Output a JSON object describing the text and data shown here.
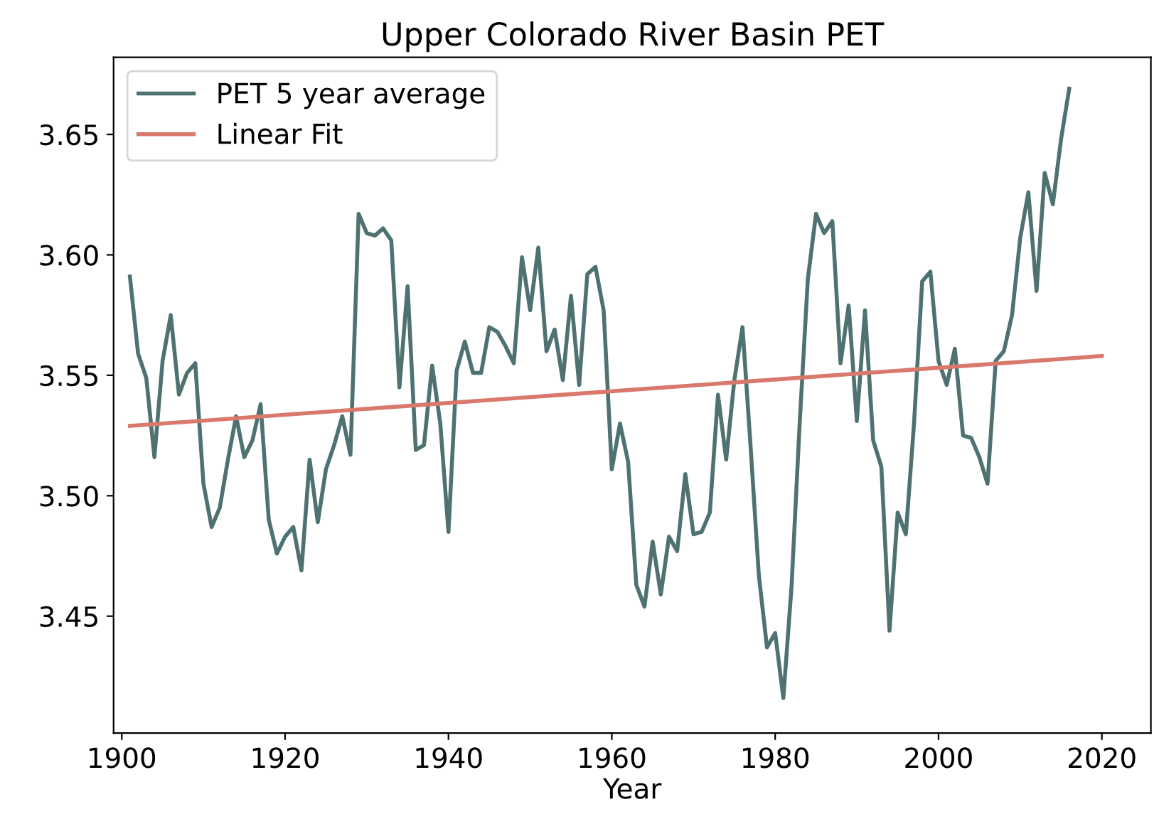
{
  "chart_data": {
    "type": "line",
    "title": "Upper Colorado River Basin PET",
    "xlabel": "Year",
    "xlim": [
      1899,
      2026
    ],
    "ylim": [
      3.4015,
      3.682
    ],
    "xticks": [
      1900,
      1920,
      1940,
      1960,
      1980,
      2000,
      2020
    ],
    "yticks": [
      {
        "value": 3.45,
        "label": "3.45"
      },
      {
        "value": 3.5,
        "label": "3.50"
      },
      {
        "value": 3.55,
        "label": "3.55"
      },
      {
        "value": 3.6,
        "label": "3.60"
      },
      {
        "value": 3.65,
        "label": "3.65"
      }
    ],
    "legend": "top left",
    "grid": false,
    "series": [
      {
        "name": "PET 5 year average",
        "color": "#4e7272",
        "x": [
          1901,
          1902,
          1903,
          1904,
          1905,
          1906,
          1907,
          1908,
          1909,
          1910,
          1911,
          1912,
          1913,
          1914,
          1915,
          1916,
          1917,
          1918,
          1919,
          1920,
          1921,
          1922,
          1923,
          1924,
          1925,
          1926,
          1927,
          1928,
          1929,
          1930,
          1931,
          1932,
          1933,
          1934,
          1935,
          1936,
          1937,
          1938,
          1939,
          1940,
          1941,
          1942,
          1943,
          1944,
          1945,
          1946,
          1947,
          1948,
          1949,
          1950,
          1951,
          1952,
          1953,
          1954,
          1955,
          1956,
          1957,
          1958,
          1959,
          1960,
          1961,
          1962,
          1963,
          1964,
          1965,
          1966,
          1967,
          1968,
          1969,
          1970,
          1971,
          1972,
          1973,
          1974,
          1975,
          1976,
          1977,
          1978,
          1979,
          1980,
          1981,
          1982,
          1983,
          1984,
          1985,
          1986,
          1987,
          1988,
          1989,
          1990,
          1991,
          1992,
          1993,
          1994,
          1995,
          1996,
          1997,
          1998,
          1999,
          2000,
          2001,
          2002,
          2003,
          2004,
          2005,
          2006,
          2007,
          2008,
          2009,
          2010,
          2011,
          2012,
          2013,
          2014,
          2015,
          2016
        ],
        "values": [
          3.591,
          3.559,
          3.549,
          3.516,
          3.556,
          3.575,
          3.542,
          3.551,
          3.555,
          3.505,
          3.487,
          3.495,
          3.515,
          3.533,
          3.516,
          3.523,
          3.538,
          3.49,
          3.476,
          3.483,
          3.487,
          3.469,
          3.515,
          3.489,
          3.511,
          3.521,
          3.533,
          3.517,
          3.617,
          3.609,
          3.608,
          3.611,
          3.606,
          3.545,
          3.587,
          3.519,
          3.521,
          3.554,
          3.53,
          3.485,
          3.552,
          3.564,
          3.551,
          3.551,
          3.57,
          3.568,
          3.562,
          3.555,
          3.599,
          3.577,
          3.603,
          3.56,
          3.569,
          3.548,
          3.583,
          3.546,
          3.592,
          3.595,
          3.577,
          3.511,
          3.53,
          3.514,
          3.463,
          3.454,
          3.481,
          3.459,
          3.483,
          3.477,
          3.509,
          3.484,
          3.485,
          3.493,
          3.542,
          3.515,
          3.548,
          3.57,
          3.52,
          3.467,
          3.437,
          3.443,
          3.416,
          3.462,
          3.53,
          3.59,
          3.617,
          3.609,
          3.614,
          3.555,
          3.579,
          3.531,
          3.577,
          3.523,
          3.512,
          3.444,
          3.493,
          3.484,
          3.53,
          3.589,
          3.593,
          3.556,
          3.546,
          3.561,
          3.525,
          3.524,
          3.516,
          3.505,
          3.556,
          3.56,
          3.575,
          3.607,
          3.626,
          3.585,
          3.634,
          3.621,
          3.648,
          3.669
        ]
      },
      {
        "name": "Linear Fit",
        "color": "#d9786b",
        "x": [
          1901,
          2020
        ],
        "values": [
          3.529,
          3.558
        ]
      }
    ]
  }
}
